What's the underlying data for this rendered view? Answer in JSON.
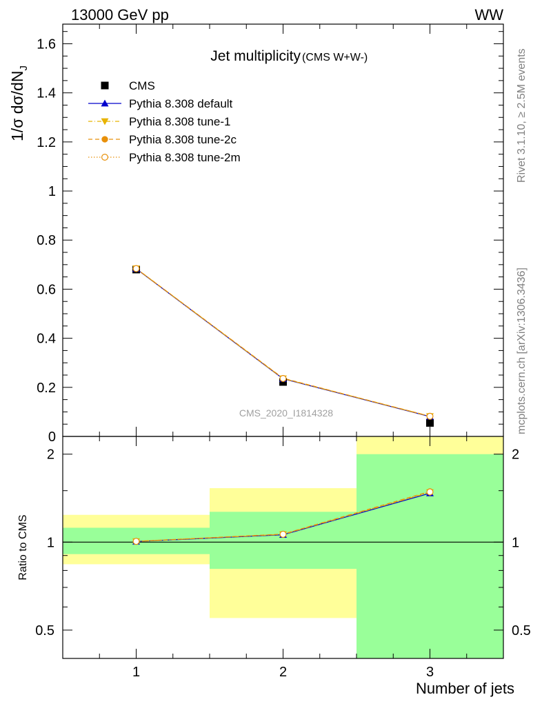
{
  "header": {
    "left": "13000 GeV pp",
    "right": "WW"
  },
  "side": {
    "top": "Rivet 3.1.10, ≥ 2.5M events",
    "bottom": "mcplots.cern.ch [arXiv:1306.3436]"
  },
  "colors": {
    "cms": "#000000",
    "default": "#0000cc",
    "tune1": "#e8b300",
    "tune2c": "#e8900a",
    "tune2m": "#e8900a",
    "band_inner": "#99ff99",
    "band_outer": "#ffff99"
  },
  "chart_data": [
    {
      "type": "line",
      "title": "Jet multiplicity",
      "subtitle": "(CMS W+W-)",
      "ylabel": "1/σ dσ/dN",
      "ylabel_sub": "J",
      "xlim": [
        0.5,
        3.5
      ],
      "ylim": [
        0,
        1.68
      ],
      "yticks": [
        0,
        0.2,
        0.4,
        0.6,
        0.8,
        1,
        1.2,
        1.4,
        1.6
      ],
      "ytick_labels": [
        "0",
        "0.2",
        "0.4",
        "0.6",
        "0.8",
        "1",
        "1.2",
        "1.4",
        "1.6"
      ],
      "watermark": "CMS_2020_I1814328",
      "legend_position": "top-left",
      "x": [
        1,
        2,
        3
      ],
      "series": [
        {
          "name": "CMS",
          "key": "cms",
          "marker": "square",
          "line": "none",
          "values": [
            0.68,
            0.222,
            0.055
          ]
        },
        {
          "name": "Pythia 8.308 default",
          "key": "default",
          "marker": "triangle-up",
          "line": "solid",
          "values": [
            0.683,
            0.235,
            0.081
          ]
        },
        {
          "name": "Pythia 8.308 tune-1",
          "key": "tune1",
          "marker": "triangle-down",
          "line": "dashdot",
          "values": [
            0.684,
            0.236,
            0.082
          ]
        },
        {
          "name": "Pythia 8.308 tune-2c",
          "key": "tune2c",
          "marker": "circle",
          "line": "dashed",
          "values": [
            0.684,
            0.237,
            0.082
          ]
        },
        {
          "name": "Pythia 8.308 tune-2m",
          "key": "tune2m",
          "marker": "circle-open",
          "line": "dotted",
          "values": [
            0.684,
            0.236,
            0.082
          ]
        }
      ]
    },
    {
      "type": "line",
      "ylabel": "Ratio to CMS",
      "xlabel": "Number of jets",
      "xlim": [
        0.5,
        3.5
      ],
      "ylim": [
        0.4,
        2.3
      ],
      "yscale": "log",
      "yticks": [
        0.5,
        1,
        2
      ],
      "ytick_labels": [
        "0.5",
        "1",
        "2"
      ],
      "xticks": [
        1,
        2,
        3
      ],
      "xtick_labels": [
        "1",
        "2",
        "3"
      ],
      "reference_line": 1,
      "bands": [
        {
          "x0": 0.5,
          "x1": 1.5,
          "inner": [
            0.91,
            1.12
          ],
          "outer": [
            0.84,
            1.24
          ]
        },
        {
          "x0": 1.5,
          "x1": 2.5,
          "inner": [
            0.81,
            1.27
          ],
          "outer": [
            0.55,
            1.53
          ]
        },
        {
          "x0": 2.5,
          "x1": 3.5,
          "inner": [
            0.4,
            2.0
          ],
          "outer": [
            0.4,
            2.3
          ]
        }
      ],
      "series": [
        {
          "name": "Pythia 8.308 default",
          "key": "default",
          "marker": "triangle-up",
          "line": "solid",
          "values": [
            1.005,
            1.06,
            1.47
          ]
        },
        {
          "name": "Pythia 8.308 tune-1",
          "key": "tune1",
          "marker": "triangle-down",
          "line": "dashdot",
          "values": [
            1.006,
            1.063,
            1.48
          ]
        },
        {
          "name": "Pythia 8.308 tune-2c",
          "key": "tune2c",
          "marker": "circle",
          "line": "dashed",
          "values": [
            1.006,
            1.065,
            1.49
          ]
        },
        {
          "name": "Pythia 8.308 tune-2m",
          "key": "tune2m",
          "marker": "circle-open",
          "line": "dotted",
          "values": [
            1.006,
            1.064,
            1.485
          ]
        }
      ]
    }
  ]
}
